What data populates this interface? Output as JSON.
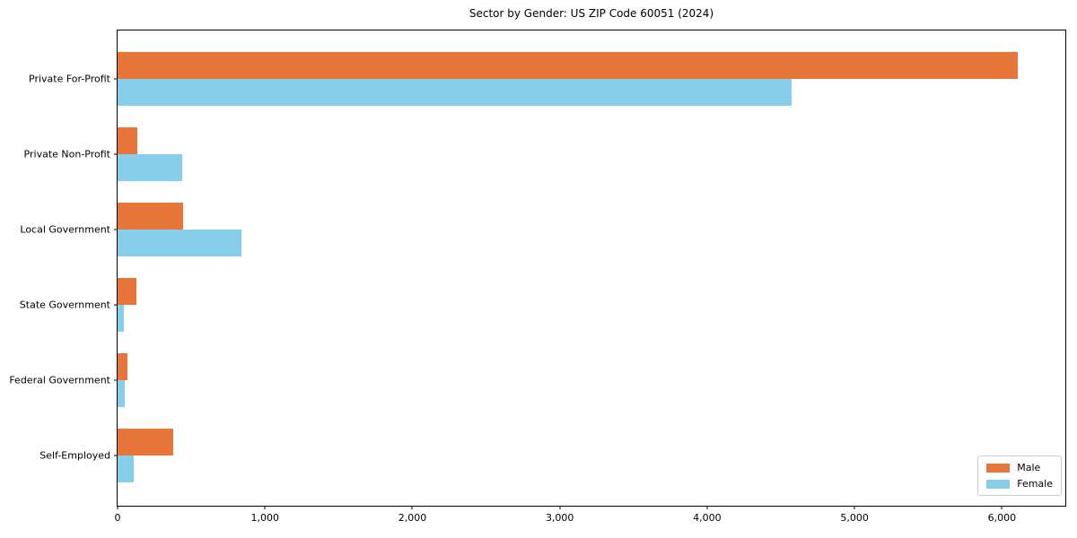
{
  "chart_data": {
    "type": "bar",
    "orientation": "horizontal",
    "title": "Sector by Gender: US ZIP Code 60051 (2024)",
    "categories": [
      "Private For-Profit",
      "Private Non-Profit",
      "Local Government",
      "State Government",
      "Federal Government",
      "Self-Employed"
    ],
    "series": [
      {
        "name": "Male",
        "color": "#e8763a",
        "values": [
          6110,
          135,
          445,
          130,
          65,
          375
        ]
      },
      {
        "name": "Female",
        "color": "#87ceeb",
        "values": [
          4570,
          440,
          840,
          40,
          50,
          110
        ]
      }
    ],
    "xlabel": "",
    "ylabel": "",
    "xlim": [
      0,
      6430
    ],
    "xticks": [
      0,
      1000,
      2000,
      3000,
      4000,
      5000,
      6000
    ],
    "xtick_labels": [
      "0",
      "1,000",
      "2,000",
      "3,000",
      "4,000",
      "5,000",
      "6,000"
    ],
    "grid": false,
    "legend": {
      "position": "lower-right",
      "entries": [
        "Male",
        "Female"
      ]
    }
  }
}
